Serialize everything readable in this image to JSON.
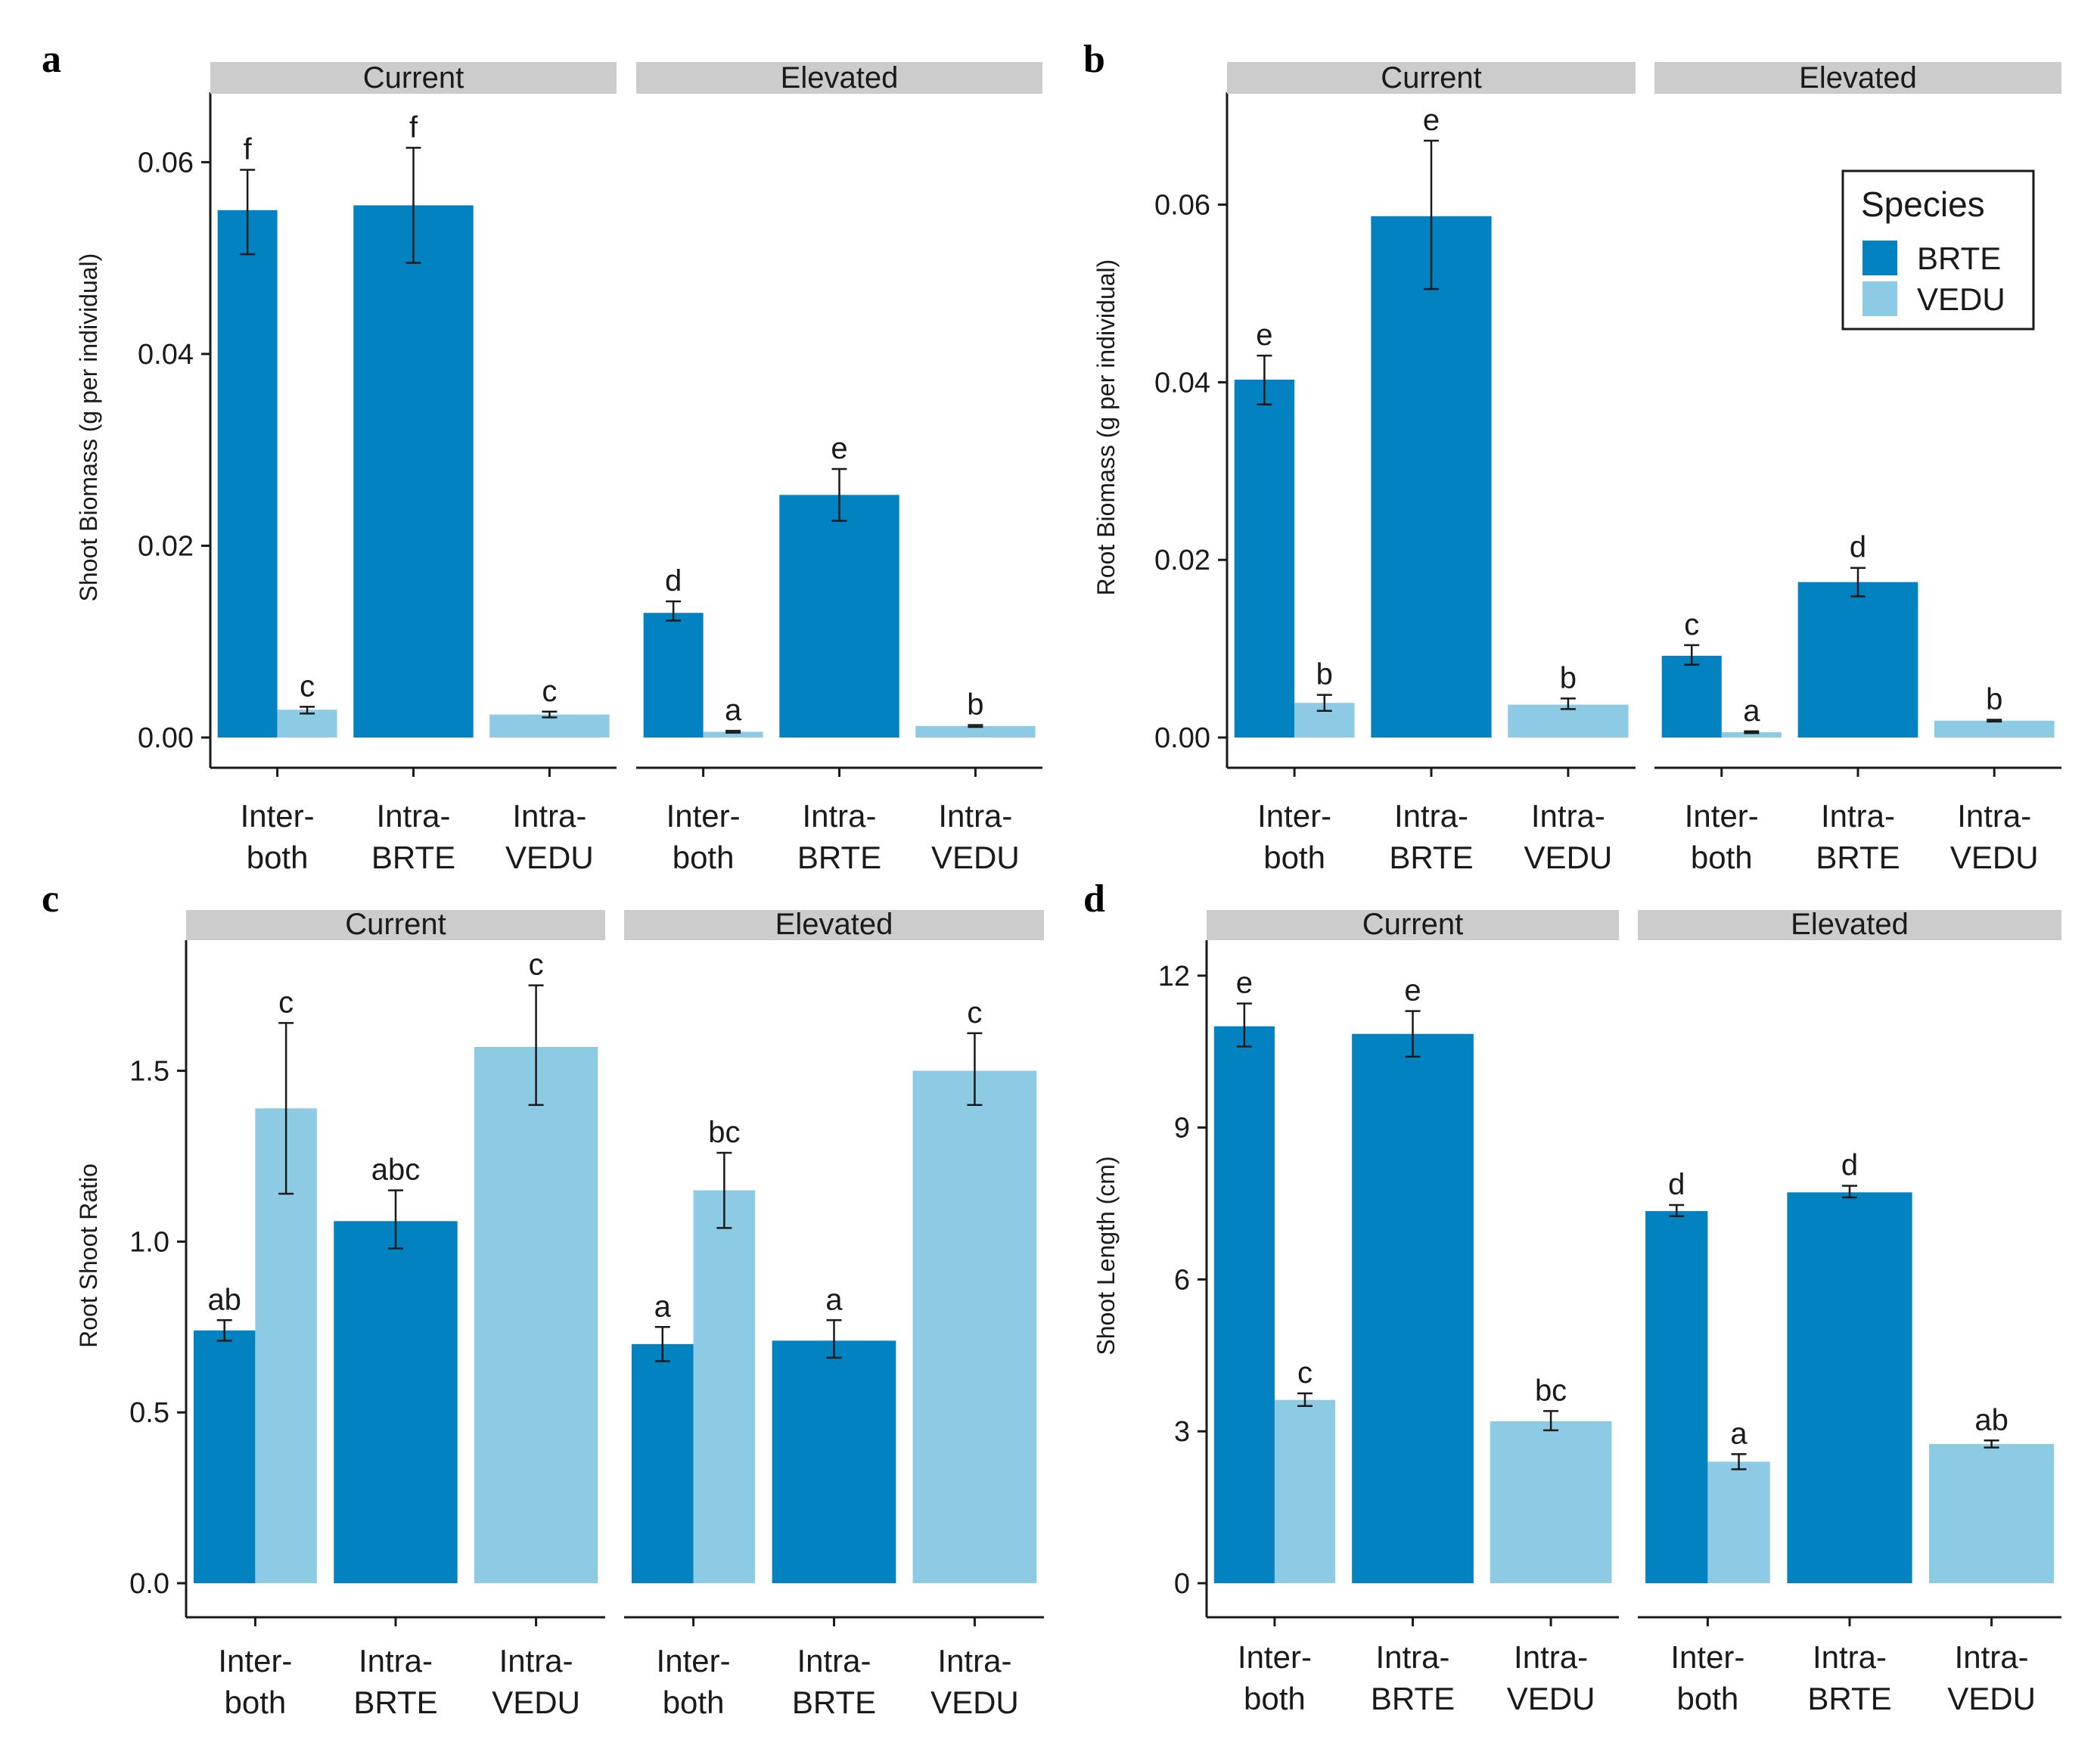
{
  "species": [
    {
      "key": "BRTE",
      "color": "#0282C0"
    },
    {
      "key": "VEDU",
      "color": "#8DCAE3"
    }
  ],
  "legend": {
    "title": "Species",
    "items": [
      "BRTE",
      "VEDU"
    ]
  },
  "chart_data": [
    {
      "panel": "a",
      "type": "bar",
      "ylabel": "Shoot Biomass (g per individual)",
      "ylim": [
        0,
        0.0665
      ],
      "yticks": [
        0,
        0.02,
        0.04,
        0.06
      ],
      "ytick_labels": [
        "0.00",
        "0.02",
        "0.04",
        "0.06"
      ],
      "facets": [
        {
          "strip": "Current",
          "categories": [
            [
              "Inter-",
              "both"
            ],
            [
              "Intra-",
              "BRTE"
            ],
            [
              "Intra-",
              "VEDU"
            ]
          ],
          "bars": [
            {
              "category": 0,
              "species": "BRTE",
              "value": 0.055,
              "lo": 0.0504,
              "hi": 0.0592,
              "sig": "f"
            },
            {
              "category": 0,
              "species": "VEDU",
              "value": 0.0029,
              "lo": 0.0025,
              "hi": 0.0032,
              "sig": "c"
            },
            {
              "category": 1,
              "species": "BRTE",
              "value": 0.0555,
              "lo": 0.0495,
              "hi": 0.0615,
              "sig": "f"
            },
            {
              "category": 2,
              "species": "VEDU",
              "value": 0.0024,
              "lo": 0.0021,
              "hi": 0.0027,
              "sig": "c"
            }
          ]
        },
        {
          "strip": "Elevated",
          "categories": [
            [
              "Inter-",
              "both"
            ],
            [
              "Intra-",
              "BRTE"
            ],
            [
              "Intra-",
              "VEDU"
            ]
          ],
          "bars": [
            {
              "category": 0,
              "species": "BRTE",
              "value": 0.013,
              "lo": 0.0122,
              "hi": 0.0142,
              "sig": "d"
            },
            {
              "category": 0,
              "species": "VEDU",
              "value": 0.0006,
              "lo": 0.0005,
              "hi": 0.0007,
              "sig": "a"
            },
            {
              "category": 1,
              "species": "BRTE",
              "value": 0.0253,
              "lo": 0.0226,
              "hi": 0.028,
              "sig": "e"
            },
            {
              "category": 2,
              "species": "VEDU",
              "value": 0.0012,
              "lo": 0.0011,
              "hi": 0.0013,
              "sig": "b"
            }
          ]
        }
      ]
    },
    {
      "panel": "b",
      "type": "bar",
      "ylabel": "Root Biomass (g per individual)",
      "ylim": [
        0,
        0.0718
      ],
      "yticks": [
        0,
        0.02,
        0.04,
        0.06
      ],
      "ytick_labels": [
        "0.00",
        "0.02",
        "0.04",
        "0.06"
      ],
      "facets": [
        {
          "strip": "Current",
          "categories": [
            [
              "Inter-",
              "both"
            ],
            [
              "Intra-",
              "BRTE"
            ],
            [
              "Intra-",
              "VEDU"
            ]
          ],
          "bars": [
            {
              "category": 0,
              "species": "BRTE",
              "value": 0.0403,
              "lo": 0.0375,
              "hi": 0.043,
              "sig": "e"
            },
            {
              "category": 0,
              "species": "VEDU",
              "value": 0.0039,
              "lo": 0.003,
              "hi": 0.0048,
              "sig": "b"
            },
            {
              "category": 1,
              "species": "BRTE",
              "value": 0.0587,
              "lo": 0.0505,
              "hi": 0.0672,
              "sig": "e"
            },
            {
              "category": 2,
              "species": "VEDU",
              "value": 0.0037,
              "lo": 0.0032,
              "hi": 0.0044,
              "sig": "b"
            }
          ]
        },
        {
          "strip": "Elevated",
          "categories": [
            [
              "Inter-",
              "both"
            ],
            [
              "Intra-",
              "BRTE"
            ],
            [
              "Intra-",
              "VEDU"
            ]
          ],
          "bars": [
            {
              "category": 0,
              "species": "BRTE",
              "value": 0.0092,
              "lo": 0.0082,
              "hi": 0.0104,
              "sig": "c"
            },
            {
              "category": 0,
              "species": "VEDU",
              "value": 0.0006,
              "lo": 0.0005,
              "hi": 0.0007,
              "sig": "a"
            },
            {
              "category": 1,
              "species": "BRTE",
              "value": 0.0175,
              "lo": 0.0159,
              "hi": 0.0191,
              "sig": "d"
            },
            {
              "category": 2,
              "species": "VEDU",
              "value": 0.0019,
              "lo": 0.0018,
              "hi": 0.002,
              "sig": "b"
            }
          ]
        }
      ]
    },
    {
      "panel": "c",
      "type": "bar",
      "ylabel": "Root Shoot Ratio",
      "ylim": [
        0,
        1.86
      ],
      "yticks": [
        0,
        0.5,
        1.0,
        1.5
      ],
      "ytick_labels": [
        "0.0",
        "0.5",
        "1.0",
        "1.5"
      ],
      "facets": [
        {
          "strip": "Current",
          "categories": [
            [
              "Inter-",
              "both"
            ],
            [
              "Intra-",
              "BRTE"
            ],
            [
              "Intra-",
              "VEDU"
            ]
          ],
          "bars": [
            {
              "category": 0,
              "species": "BRTE",
              "value": 0.74,
              "lo": 0.71,
              "hi": 0.77,
              "sig": "ab"
            },
            {
              "category": 0,
              "species": "VEDU",
              "value": 1.39,
              "lo": 1.14,
              "hi": 1.64,
              "sig": "c"
            },
            {
              "category": 1,
              "species": "BRTE",
              "value": 1.06,
              "lo": 0.98,
              "hi": 1.15,
              "sig": "abc"
            },
            {
              "category": 2,
              "species": "VEDU",
              "value": 1.57,
              "lo": 1.4,
              "hi": 1.75,
              "sig": "c"
            }
          ]
        },
        {
          "strip": "Elevated",
          "categories": [
            [
              "Inter-",
              "both"
            ],
            [
              "Intra-",
              "BRTE"
            ],
            [
              "Intra-",
              "VEDU"
            ]
          ],
          "bars": [
            {
              "category": 0,
              "species": "BRTE",
              "value": 0.7,
              "lo": 0.65,
              "hi": 0.75,
              "sig": "a"
            },
            {
              "category": 0,
              "species": "VEDU",
              "value": 1.15,
              "lo": 1.04,
              "hi": 1.26,
              "sig": "bc"
            },
            {
              "category": 1,
              "species": "BRTE",
              "value": 0.71,
              "lo": 0.66,
              "hi": 0.77,
              "sig": "a"
            },
            {
              "category": 2,
              "species": "VEDU",
              "value": 1.5,
              "lo": 1.4,
              "hi": 1.61,
              "sig": "c"
            }
          ]
        }
      ]
    },
    {
      "panel": "d",
      "type": "bar",
      "ylabel": "Shoot Length (cm)",
      "ylim": [
        0,
        12.55
      ],
      "yticks": [
        0,
        3,
        6,
        9,
        12
      ],
      "ytick_labels": [
        "0",
        "3",
        "6",
        "9",
        "12"
      ],
      "facets": [
        {
          "strip": "Current",
          "categories": [
            [
              "Inter-",
              "both"
            ],
            [
              "Intra-",
              "BRTE"
            ],
            [
              "Intra-",
              "VEDU"
            ]
          ],
          "bars": [
            {
              "category": 0,
              "species": "BRTE",
              "value": 11.0,
              "lo": 10.6,
              "hi": 11.45,
              "sig": "e"
            },
            {
              "category": 0,
              "species": "VEDU",
              "value": 3.62,
              "lo": 3.5,
              "hi": 3.75,
              "sig": "c"
            },
            {
              "category": 1,
              "species": "BRTE",
              "value": 10.85,
              "lo": 10.4,
              "hi": 11.3,
              "sig": "e"
            },
            {
              "category": 2,
              "species": "VEDU",
              "value": 3.2,
              "lo": 3.02,
              "hi": 3.4,
              "sig": "bc"
            }
          ]
        },
        {
          "strip": "Elevated",
          "categories": [
            [
              "Inter-",
              "both"
            ],
            [
              "Intra-",
              "BRTE"
            ],
            [
              "Intra-",
              "VEDU"
            ]
          ],
          "bars": [
            {
              "category": 0,
              "species": "BRTE",
              "value": 7.35,
              "lo": 7.25,
              "hi": 7.47,
              "sig": "d"
            },
            {
              "category": 0,
              "species": "VEDU",
              "value": 2.4,
              "lo": 2.25,
              "hi": 2.55,
              "sig": "a"
            },
            {
              "category": 1,
              "species": "BRTE",
              "value": 7.72,
              "lo": 7.62,
              "hi": 7.85,
              "sig": "d"
            },
            {
              "category": 2,
              "species": "VEDU",
              "value": 2.75,
              "lo": 2.68,
              "hi": 2.82,
              "sig": "ab"
            }
          ]
        }
      ]
    }
  ]
}
